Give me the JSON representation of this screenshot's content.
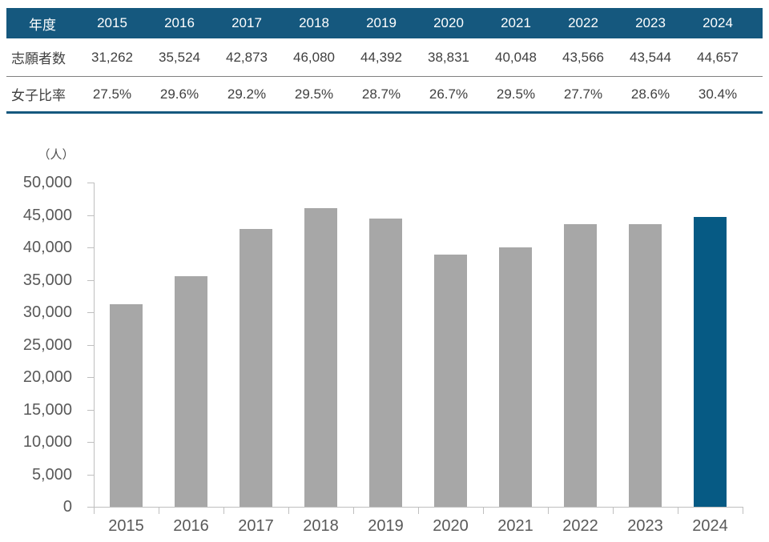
{
  "colors": {
    "header_bg": "#15587E",
    "table_border": "#15587E",
    "row_divider": "#808080",
    "table_text": "#404040",
    "header_text": "#FFFFFF",
    "bar_gray": "#A7A7A7",
    "bar_highlight": "#065A84",
    "axis_line": "#BFBFBF",
    "axis_text": "#595959"
  },
  "table": {
    "corner_label": "年度",
    "years": [
      "2015",
      "2016",
      "2017",
      "2018",
      "2019",
      "2020",
      "2021",
      "2022",
      "2023",
      "2024"
    ],
    "rows": [
      {
        "label": "志願者数",
        "values": [
          "31,262",
          "35,524",
          "42,873",
          "46,080",
          "44,392",
          "38,831",
          "40,048",
          "43,566",
          "43,544",
          "44,657"
        ]
      },
      {
        "label": "女子比率",
        "values": [
          "27.5%",
          "29.6%",
          "29.2%",
          "29.5%",
          "28.7%",
          "26.7%",
          "29.5%",
          "27.7%",
          "28.6%",
          "30.4%"
        ]
      }
    ]
  },
  "chart_data": {
    "type": "bar",
    "title": "",
    "unit_label": "（人）",
    "xlabel": "",
    "ylabel": "人",
    "categories": [
      "2015",
      "2016",
      "2017",
      "2018",
      "2019",
      "2020",
      "2021",
      "2022",
      "2023",
      "2024"
    ],
    "values": [
      31262,
      35524,
      42873,
      46080,
      44392,
      38831,
      40048,
      43566,
      43544,
      44657
    ],
    "ylim": [
      0,
      50000
    ],
    "ytick_step": 5000,
    "grid": false,
    "legend": false,
    "highlight_category": "2024",
    "bar_color": "#A7A7A7",
    "highlight_color": "#065A84"
  }
}
